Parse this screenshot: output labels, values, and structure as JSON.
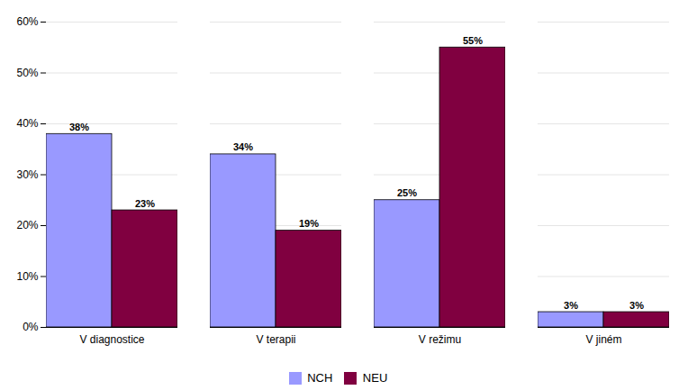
{
  "chart_data": {
    "type": "bar",
    "categories": [
      "V diagnostice",
      "V terapii",
      "V režimu",
      "V jiném"
    ],
    "series": [
      {
        "name": "NCH",
        "color": "#9999ff",
        "values": [
          38,
          34,
          25,
          3
        ],
        "value_labels": [
          "38%",
          "34%",
          "25%",
          "3%"
        ]
      },
      {
        "name": "NEU",
        "color": "#800040",
        "values": [
          23,
          19,
          55,
          3
        ],
        "value_labels": [
          "23%",
          "19%",
          "55%",
          "3%"
        ]
      }
    ],
    "ylim": [
      0,
      60
    ],
    "yticks": [
      {
        "value": 0,
        "label": "0%"
      },
      {
        "value": 10,
        "label": "10%"
      },
      {
        "value": 20,
        "label": "20%"
      },
      {
        "value": 30,
        "label": "30%"
      },
      {
        "value": 40,
        "label": "40%"
      },
      {
        "value": 50,
        "label": "50%"
      },
      {
        "value": 60,
        "label": "60%"
      }
    ],
    "grid": true,
    "legend": "bottom",
    "data_labels": true
  }
}
